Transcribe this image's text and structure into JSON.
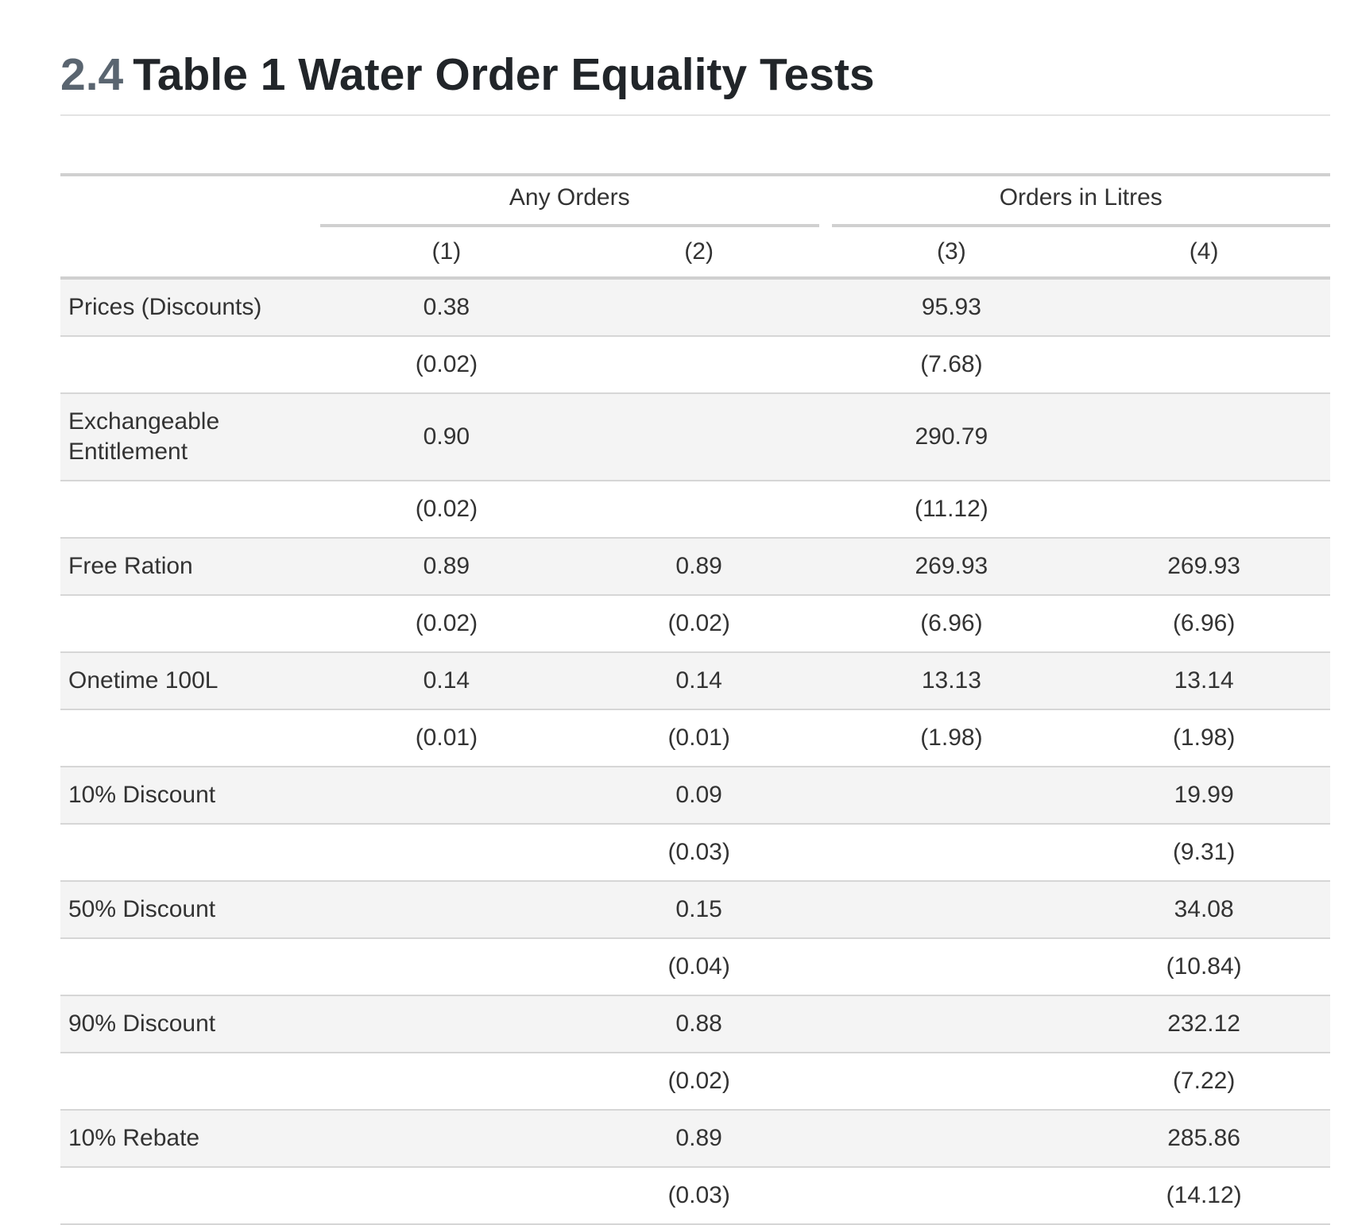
{
  "heading": {
    "number": "2.4",
    "title": "Table 1 Water Order Equality Tests"
  },
  "table": {
    "groups": [
      "Any Orders",
      "Orders in Litres"
    ],
    "columns": [
      "(1)",
      "(2)",
      "(3)",
      "(4)"
    ],
    "rows": [
      {
        "label": "Prices (Discounts)",
        "cells": [
          "0.38",
          "",
          "95.93",
          ""
        ]
      },
      {
        "label": "",
        "cells": [
          "(0.02)",
          "",
          "(7.68)",
          ""
        ]
      },
      {
        "label": "Exchangeable Entitlement",
        "cells": [
          "0.90",
          "",
          "290.79",
          ""
        ]
      },
      {
        "label": "",
        "cells": [
          "(0.02)",
          "",
          "(11.12)",
          ""
        ]
      },
      {
        "label": "Free Ration",
        "cells": [
          "0.89",
          "0.89",
          "269.93",
          "269.93"
        ]
      },
      {
        "label": "",
        "cells": [
          "(0.02)",
          "(0.02)",
          "(6.96)",
          "(6.96)"
        ]
      },
      {
        "label": "Onetime 100L",
        "cells": [
          "0.14",
          "0.14",
          "13.13",
          "13.14"
        ]
      },
      {
        "label": "",
        "cells": [
          "(0.01)",
          "(0.01)",
          "(1.98)",
          "(1.98)"
        ]
      },
      {
        "label": "10% Discount",
        "cells": [
          "",
          "0.09",
          "",
          "19.99"
        ]
      },
      {
        "label": "",
        "cells": [
          "",
          "(0.03)",
          "",
          "(9.31)"
        ]
      },
      {
        "label": "50% Discount",
        "cells": [
          "",
          "0.15",
          "",
          "34.08"
        ]
      },
      {
        "label": "",
        "cells": [
          "",
          "(0.04)",
          "",
          "(10.84)"
        ]
      },
      {
        "label": "90% Discount",
        "cells": [
          "",
          "0.88",
          "",
          "232.12"
        ]
      },
      {
        "label": "",
        "cells": [
          "",
          "(0.02)",
          "",
          "(7.22)"
        ]
      },
      {
        "label": "10% Rebate",
        "cells": [
          "",
          "0.89",
          "",
          "285.86"
        ]
      },
      {
        "label": "",
        "cells": [
          "",
          "(0.03)",
          "",
          "(14.12)"
        ]
      }
    ]
  }
}
